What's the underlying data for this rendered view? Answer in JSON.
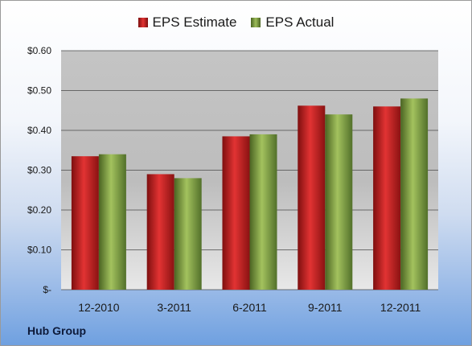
{
  "chart_data": {
    "type": "bar",
    "categories": [
      "12-2010",
      "3-2011",
      "6-2011",
      "9-2011",
      "12-2011"
    ],
    "series": [
      {
        "name": "EPS Estimate",
        "values": [
          0.335,
          0.29,
          0.385,
          0.462,
          0.46
        ],
        "color": "#c81d1d"
      },
      {
        "name": "EPS Actual",
        "values": [
          0.34,
          0.28,
          0.39,
          0.44,
          0.48
        ],
        "color": "#7a9a3c"
      }
    ],
    "ylim": [
      0,
      0.6
    ],
    "yticks": [
      0,
      0.1,
      0.2,
      0.3,
      0.4,
      0.5,
      0.6
    ],
    "ytick_labels": [
      "$-",
      "$0.10",
      "$0.20",
      "$0.30",
      "$0.40",
      "$0.50",
      "$0.60"
    ],
    "grid": true,
    "legend_position": "top"
  },
  "company": "Hub Group"
}
